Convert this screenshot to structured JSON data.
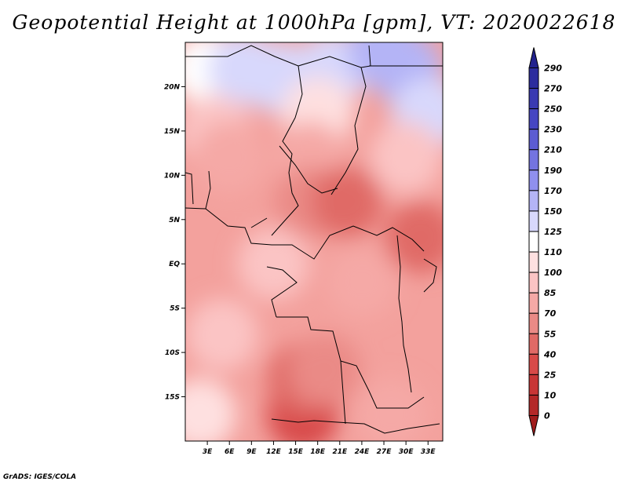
{
  "chart_data": {
    "type": "heatmap",
    "title": "Geopotential Height at 1000hPa [gpm], VT: 2020022618",
    "variable": "Geopotential Height",
    "level": "1000hPa",
    "units": "gpm",
    "valid_time": "2020022618",
    "x_axis": {
      "range": [
        0,
        35
      ],
      "ticks": [
        3,
        6,
        9,
        12,
        15,
        18,
        21,
        24,
        27,
        30,
        33
      ],
      "tick_labels": [
        "3E",
        "6E",
        "9E",
        "12E",
        "15E",
        "18E",
        "21E",
        "24E",
        "27E",
        "30E",
        "33E"
      ]
    },
    "y_axis": {
      "range": [
        -20,
        25
      ],
      "ticks": [
        20,
        15,
        10,
        5,
        0,
        -5,
        -10,
        -15
      ],
      "tick_labels": [
        "20N",
        "15N",
        "10N",
        "5N",
        "EQ",
        "5S",
        "10S",
        "15S"
      ]
    },
    "colorbar": {
      "orientation": "vertical",
      "levels": [
        "290",
        "270",
        "250",
        "230",
        "210",
        "190",
        "170",
        "150",
        "125",
        "110",
        "100",
        "85",
        "70",
        "55",
        "40",
        "25",
        "10",
        "0"
      ],
      "colors": [
        "#22228e",
        "#2c2c9e",
        "#3a3ab2",
        "#4646c2",
        "#5c5cd2",
        "#7474e0",
        "#9090ee",
        "#b4b4f6",
        "#d8d8fc",
        "#ffffff",
        "#fee0e0",
        "#fbc4c4",
        "#f5a9a6",
        "#ea8a86",
        "#e06a66",
        "#d84a48",
        "#c83636",
        "#b42828",
        "#a01c1c"
      ]
    },
    "value_field": [
      {
        "lon": 3,
        "lat": 22,
        "value": 118
      },
      {
        "lon": 8,
        "lat": 22,
        "value": 125
      },
      {
        "lon": 13,
        "lat": 21,
        "value": 130
      },
      {
        "lon": 20,
        "lat": 22,
        "value": 132
      },
      {
        "lon": 27,
        "lat": 24,
        "value": 160
      },
      {
        "lon": 30,
        "lat": 22,
        "value": 150
      },
      {
        "lon": 33,
        "lat": 17,
        "value": 135
      },
      {
        "lon": 18,
        "lat": 17,
        "value": 108
      },
      {
        "lon": 4,
        "lat": 15,
        "value": 95
      },
      {
        "lon": 6,
        "lat": 12,
        "value": 80
      },
      {
        "lon": 17,
        "lat": 12,
        "value": 78
      },
      {
        "lon": 30,
        "lat": 12,
        "value": 85
      },
      {
        "lon": 17,
        "lat": 7,
        "value": 55
      },
      {
        "lon": 22,
        "lat": 7,
        "value": 50
      },
      {
        "lon": 32,
        "lat": 3,
        "value": 45
      },
      {
        "lon": 12,
        "lat": 0,
        "value": 85
      },
      {
        "lon": 24,
        "lat": -2,
        "value": 70
      },
      {
        "lon": 16,
        "lat": -17,
        "value": 30
      },
      {
        "lon": 16,
        "lat": -13,
        "value": 50
      },
      {
        "lon": 19,
        "lat": -12,
        "value": 55
      },
      {
        "lon": 5,
        "lat": -8,
        "value": 85
      },
      {
        "lon": 2,
        "lat": -17,
        "value": 105
      },
      {
        "lon": 28,
        "lat": -17,
        "value": 80
      }
    ]
  },
  "credit": "GrADS: IGES/COLA"
}
